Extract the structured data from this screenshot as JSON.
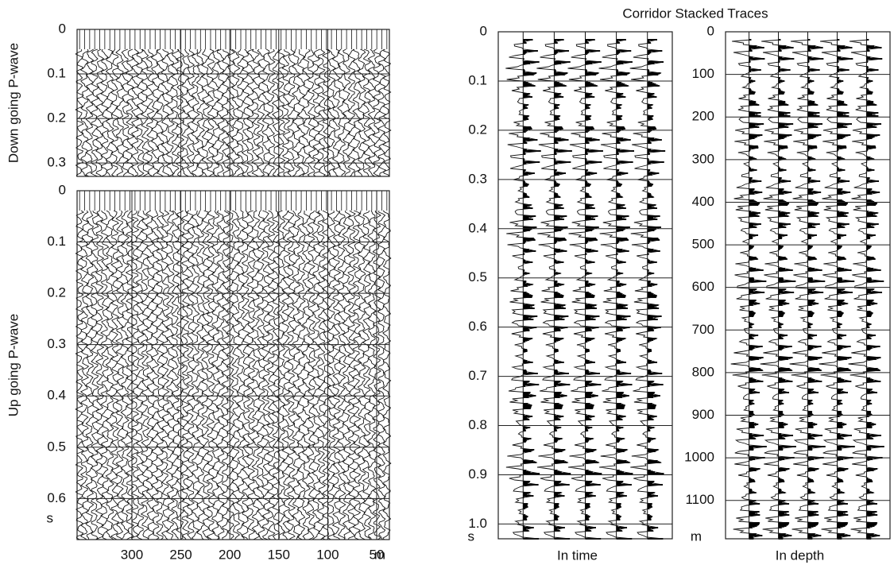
{
  "title": "Corridor Stacked Traces",
  "chart_data": [
    {
      "type": "wiggle",
      "ylabel": "Down going P-wave",
      "ylim": [
        0,
        0.33
      ],
      "yticks": [
        0,
        0.1,
        0.2,
        0.3
      ],
      "xlim": [
        356,
        37
      ],
      "xgrid": [
        250,
        200,
        150,
        100
      ],
      "grid": true
    },
    {
      "type": "wiggle",
      "ylabel": "Up going P-wave",
      "ylim": [
        0,
        0.68
      ],
      "yticks": [
        0,
        0.1,
        0.2,
        0.3,
        0.4,
        0.5,
        0.6
      ],
      "yunit": "s",
      "xlim": [
        356,
        37
      ],
      "xticks": [
        300,
        250,
        200,
        150,
        100,
        50
      ],
      "xunit": "m",
      "grid": true
    },
    {
      "type": "corridor",
      "xlabel": "In time",
      "ylim": [
        0,
        1.03
      ],
      "yticks": [
        0,
        0.1,
        0.2,
        0.3,
        0.4,
        0.5,
        0.6,
        0.7,
        0.8,
        0.9,
        {
          "value": 1,
          "label": "1.0"
        }
      ],
      "yunit": "s",
      "grid": true
    },
    {
      "type": "corridor",
      "xlabel": "In depth",
      "ylim": [
        0,
        1190
      ],
      "yticks": [
        0,
        100,
        200,
        300,
        400,
        500,
        600,
        700,
        800,
        900,
        1000,
        1100
      ],
      "yunit": "m",
      "grid": true
    }
  ]
}
